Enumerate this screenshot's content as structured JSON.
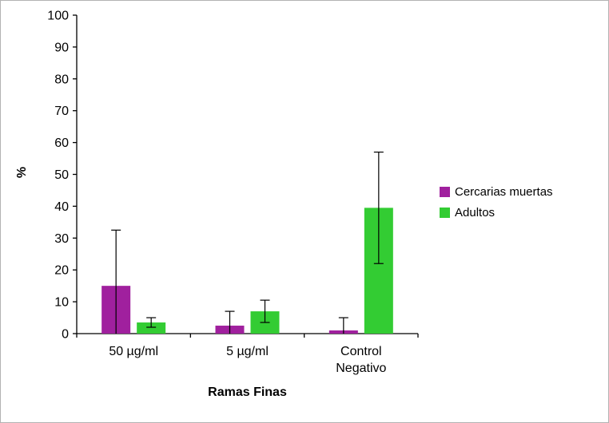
{
  "figure": {
    "background": "#ffffff",
    "border_color": "#b3b3b3"
  },
  "chart_data": {
    "type": "bar",
    "title": "",
    "xlabel": "Ramas Finas",
    "ylabel": "%",
    "ylim": [
      0,
      100
    ],
    "ytick_step": 10,
    "grid": false,
    "legend_position": "right",
    "categories": [
      "50 µg/ml",
      "5 µg/ml",
      "Control\nNegativo"
    ],
    "series": [
      {
        "name": "Cercarias muertas",
        "color": "#a0209e",
        "values": [
          15,
          2.5,
          1
        ],
        "errors": [
          17.5,
          4.5,
          4
        ]
      },
      {
        "name": "Adultos",
        "color": "#33cc33",
        "values": [
          3.5,
          7,
          39.5
        ],
        "errors": [
          1.5,
          3.5,
          17.5
        ]
      }
    ]
  }
}
